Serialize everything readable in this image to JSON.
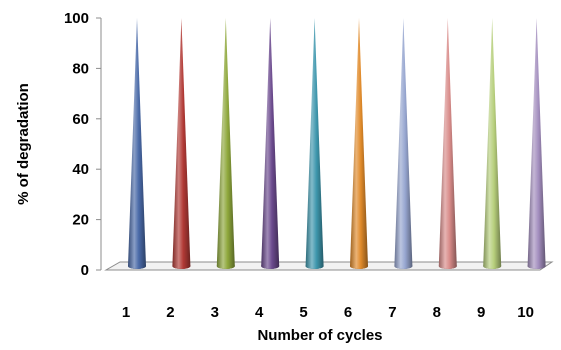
{
  "chart_data": {
    "type": "bar",
    "style": "3d-cone",
    "categories": [
      "1",
      "2",
      "3",
      "4",
      "5",
      "6",
      "7",
      "8",
      "9",
      "10"
    ],
    "values": [
      100,
      100,
      100,
      100,
      100,
      100,
      100,
      100,
      100,
      100
    ],
    "xlabel": "Number of cycles",
    "ylabel": "% of degradation",
    "ylim": [
      0,
      100
    ],
    "yticks": [
      "0",
      "20",
      "40",
      "60",
      "80",
      "100"
    ],
    "grid": false,
    "colors": [
      "#4a6aa8",
      "#b23a36",
      "#8fa83c",
      "#6b4a8e",
      "#3e97ad",
      "#e08a2a",
      "#97a6d0",
      "#d98c8a",
      "#b7cf7c",
      "#a48fbf"
    ]
  }
}
